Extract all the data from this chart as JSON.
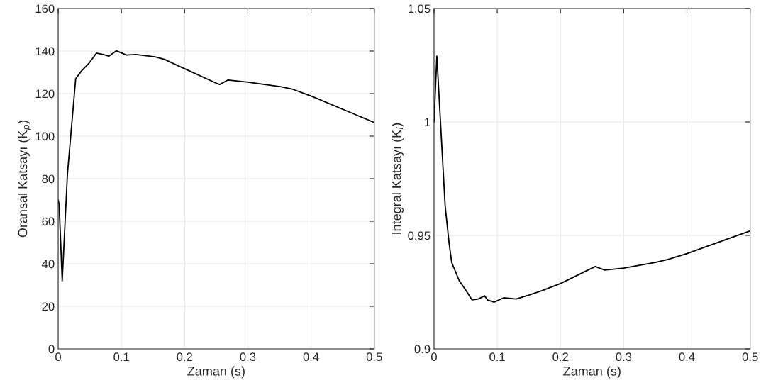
{
  "chart_data": [
    {
      "type": "line",
      "xlabel": "Zaman (s)",
      "ylabel": "Oransal Katsayı (K$_{p}$)",
      "xlim": [
        0,
        0.5
      ],
      "ylim": [
        0,
        160
      ],
      "xticks": [
        0,
        0.1,
        0.2,
        0.3,
        0.4,
        0.5
      ],
      "yticks": [
        0,
        20,
        40,
        60,
        80,
        100,
        120,
        140,
        160
      ],
      "grid": true,
      "series": [
        {
          "color": "#000000",
          "x": [
            0,
            0.0015,
            0.0064,
            0.0146,
            0.0277,
            0.037,
            0.048,
            0.0605,
            0.0725,
            0.08,
            0.092,
            0.108,
            0.123,
            0.153,
            0.168,
            0.2,
            0.25,
            0.2556,
            0.2687,
            0.3004,
            0.3528,
            0.3714,
            0.4013,
            0.5
          ],
          "values": [
            70,
            68,
            32,
            82,
            127,
            130.7,
            134,
            139,
            138.3,
            137.6,
            140.1,
            138.1,
            138.4,
            137.3,
            136.1,
            131.7,
            124.9,
            124.3,
            126.4,
            125.4,
            123.2,
            122,
            118.7,
            106.4
          ]
        }
      ]
    },
    {
      "type": "line",
      "xlabel": "Zaman (s)",
      "ylabel": "Integral Katsayı (K$_{i}$)",
      "xlim": [
        0,
        0.5
      ],
      "ylim": [
        0.9,
        1.05
      ],
      "xticks": [
        0,
        0.1,
        0.2,
        0.3,
        0.4,
        0.5
      ],
      "yticks": [
        0.9,
        0.95,
        1,
        1.05
      ],
      "grid": true,
      "series": [
        {
          "color": "#000000",
          "x": [
            0,
            0.0045,
            0.0109,
            0.0176,
            0.0239,
            0.028,
            0.04,
            0.05,
            0.06,
            0.07,
            0.08,
            0.085,
            0.095,
            0.11,
            0.13,
            0.15,
            0.17,
            0.2,
            0.255,
            0.27,
            0.3,
            0.35,
            0.37,
            0.4,
            0.45,
            0.5
          ],
          "values": [
            1.0,
            1.029,
            0.9966,
            0.9631,
            0.9465,
            0.9381,
            0.93,
            0.926,
            0.9216,
            0.922,
            0.9234,
            0.9215,
            0.9206,
            0.9225,
            0.922,
            0.9237,
            0.9256,
            0.9288,
            0.9363,
            0.9347,
            0.9356,
            0.9381,
            0.9394,
            0.942,
            0.947,
            0.952
          ]
        }
      ]
    }
  ]
}
